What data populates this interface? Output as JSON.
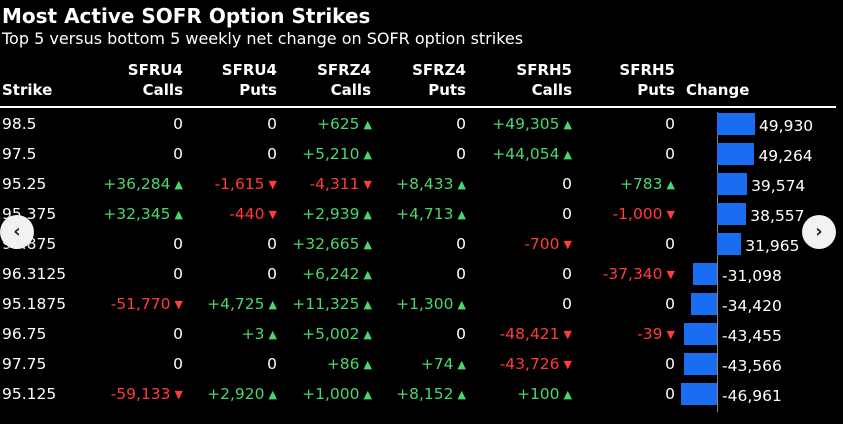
{
  "title": "Most Active SOFR Option Strikes",
  "subtitle": "Top 5 versus bottom 5 weekly net change on SOFR option strikes",
  "headers": {
    "strike": "Strike",
    "c1": [
      "SFRU4",
      "Calls"
    ],
    "c2": [
      "SFRU4",
      "Puts"
    ],
    "c3": [
      "SFRZ4",
      "Calls"
    ],
    "c4": [
      "SFRZ4",
      "Puts"
    ],
    "c5": [
      "SFRH5",
      "Calls"
    ],
    "c6": [
      "SFRH5",
      "Puts"
    ],
    "change": "Change"
  },
  "colors": {
    "up": "#4ad66d",
    "down": "#ff3b3b",
    "bar": "#1a6df0"
  },
  "arrows": {
    "up": "▲",
    "down": "▼"
  },
  "nav": {
    "prev": "‹",
    "next": "›"
  },
  "chart_data": {
    "type": "table",
    "columns": [
      "Strike",
      "SFRU4 Calls",
      "SFRU4 Puts",
      "SFRZ4 Calls",
      "SFRZ4 Puts",
      "SFRH5 Calls",
      "SFRH5 Puts",
      "Change"
    ],
    "rows": [
      {
        "strike": "98.5",
        "cells": [
          "0",
          "0",
          "+625",
          "0",
          "+49,305",
          "0"
        ],
        "change": 49930,
        "change_label": "49,930"
      },
      {
        "strike": "97.5",
        "cells": [
          "0",
          "0",
          "+5,210",
          "0",
          "+44,054",
          "0"
        ],
        "change": 49264,
        "change_label": "49,264"
      },
      {
        "strike": "95.25",
        "cells": [
          "+36,284",
          "-1,615",
          "-4,311",
          "+8,433",
          "0",
          "+783"
        ],
        "change": 39574,
        "change_label": "39,574"
      },
      {
        "strike": "95.375",
        "cells": [
          "+32,345",
          "-440",
          "+2,939",
          "+4,713",
          "0",
          "-1,000"
        ],
        "change": 38557,
        "change_label": "38,557"
      },
      {
        "strike": "95.875",
        "cells": [
          "0",
          "0",
          "+32,665",
          "0",
          "-700",
          "0"
        ],
        "change": 31965,
        "change_label": "31,965"
      },
      {
        "strike": "96.3125",
        "cells": [
          "0",
          "0",
          "+6,242",
          "0",
          "0",
          "-37,340"
        ],
        "change": -31098,
        "change_label": "-31,098"
      },
      {
        "strike": "95.1875",
        "cells": [
          "-51,770",
          "+4,725",
          "+11,325",
          "+1,300",
          "0",
          "0"
        ],
        "change": -34420,
        "change_label": "-34,420"
      },
      {
        "strike": "96.75",
        "cells": [
          "0",
          "+3",
          "+5,002",
          "0",
          "-48,421",
          "-39"
        ],
        "change": -43455,
        "change_label": "-43,455"
      },
      {
        "strike": "97.75",
        "cells": [
          "0",
          "0",
          "+86",
          "+74",
          "-43,726",
          "0"
        ],
        "change": -43566,
        "change_label": "-43,566"
      },
      {
        "strike": "95.125",
        "cells": [
          "-59,133",
          "+2,920",
          "+1,000",
          "+8,152",
          "+100",
          "0"
        ],
        "change": -46961,
        "change_label": "-46,961"
      }
    ],
    "change_range": [
      -50000,
      50000
    ]
  }
}
